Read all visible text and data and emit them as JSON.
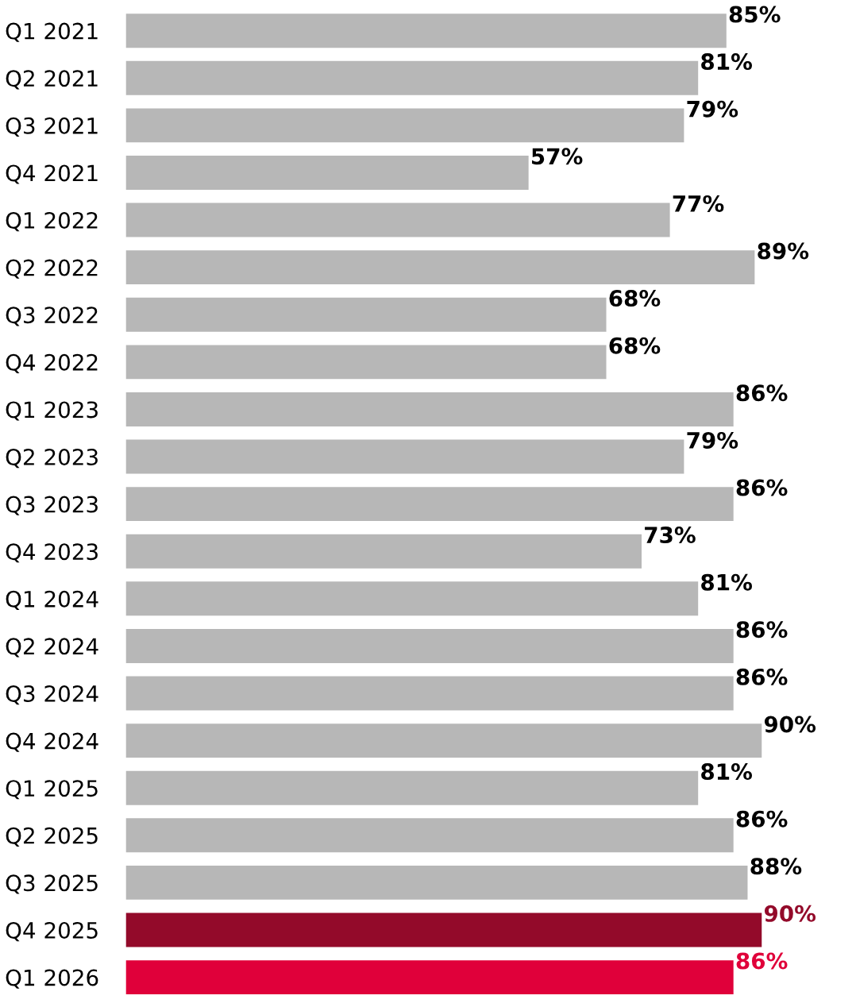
{
  "chart_data": {
    "type": "bar",
    "orientation": "horizontal",
    "categories": [
      "Q1 2021",
      "Q2 2021",
      "Q3 2021",
      "Q4 2021",
      "Q1 2022",
      "Q2 2022",
      "Q3 2022",
      "Q4 2022",
      "Q1 2023",
      "Q2 2023",
      "Q3 2023",
      "Q4 2023",
      "Q1 2024",
      "Q2 2024",
      "Q3 2024",
      "Q4 2024",
      "Q1 2025",
      "Q2 2025",
      "Q3 2025",
      "Q4 2025",
      "Q1 2026"
    ],
    "values": [
      85,
      81,
      79,
      57,
      77,
      89,
      68,
      68,
      86,
      79,
      86,
      73,
      81,
      86,
      86,
      90,
      81,
      86,
      88,
      90,
      86
    ],
    "value_labels": [
      "85%",
      "81%",
      "79%",
      "57%",
      "77%",
      "89%",
      "68%",
      "68%",
      "86%",
      "79%",
      "86%",
      "73%",
      "81%",
      "86%",
      "86%",
      "90%",
      "81%",
      "86%",
      "88%",
      "90%",
      "86%"
    ],
    "colors": [
      "#b7b7b7",
      "#b7b7b7",
      "#b7b7b7",
      "#b7b7b7",
      "#b7b7b7",
      "#b7b7b7",
      "#b7b7b7",
      "#b7b7b7",
      "#b7b7b7",
      "#b7b7b7",
      "#b7b7b7",
      "#b7b7b7",
      "#b7b7b7",
      "#b7b7b7",
      "#b7b7b7",
      "#b7b7b7",
      "#b7b7b7",
      "#b7b7b7",
      "#b7b7b7",
      "#930a2a",
      "#e0003a"
    ]
  }
}
